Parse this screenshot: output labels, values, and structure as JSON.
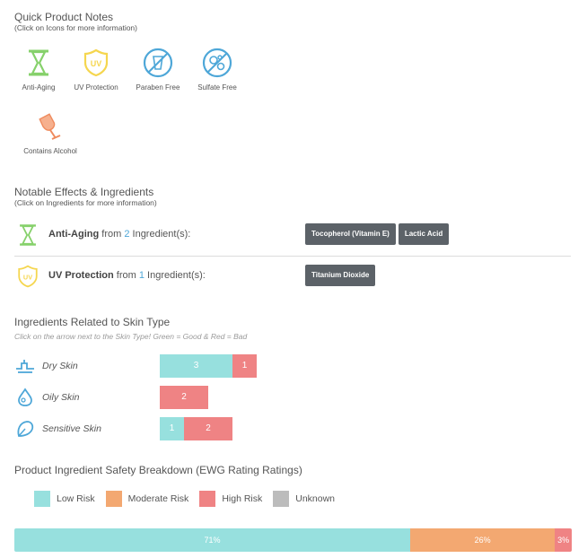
{
  "quick_notes": {
    "title": "Quick Product Notes",
    "subtitle": "(Click on Icons for more information)",
    "items": [
      {
        "label": "Anti-Aging",
        "icon": "hourglass-icon"
      },
      {
        "label": "UV Protection",
        "icon": "uv-shield-icon"
      },
      {
        "label": "Paraben Free",
        "icon": "paraben-free-icon"
      },
      {
        "label": "Sulfate Free",
        "icon": "sulfate-free-icon"
      },
      {
        "label": "Contains Alcohol",
        "icon": "wine-glass-icon"
      }
    ]
  },
  "notable": {
    "title": "Notable Effects & Ingredients",
    "subtitle": "(Click on Ingredients for more information)",
    "rows": [
      {
        "name": "Anti-Aging",
        "from": "from",
        "count": "2",
        "suffix": "Ingredient(s):",
        "tags": [
          "Tocopherol (Vitamin E)",
          "Lactic Acid"
        ]
      },
      {
        "name": "UV Protection",
        "from": "from",
        "count": "1",
        "suffix": "Ingredient(s):",
        "tags": [
          "Titanium Dioxide"
        ]
      }
    ]
  },
  "skin_type": {
    "title": "Ingredients Related to Skin Type",
    "subtitle": "Click on the arrow next to the Skin Type! Green = Good & Red = Bad",
    "rows": [
      {
        "label": "Dry Skin",
        "good": 3,
        "bad": 1,
        "icon": "dry-skin-icon"
      },
      {
        "label": "Oily Skin",
        "good": 0,
        "bad": 2,
        "icon": "oily-skin-icon"
      },
      {
        "label": "Sensitive Skin",
        "good": 1,
        "bad": 2,
        "icon": "sensitive-skin-icon"
      }
    ],
    "colors": {
      "good": "#97e0de",
      "bad": "#ef8384"
    }
  },
  "safety": {
    "title": "Product Ingredient Safety Breakdown (EWG Rating Ratings)",
    "legend": [
      {
        "label": "Low Risk",
        "color": "#97e0de"
      },
      {
        "label": "Moderate Risk",
        "color": "#f3a871"
      },
      {
        "label": "High Risk",
        "color": "#ef8384"
      },
      {
        "label": "Unknown",
        "color": "#bcbcbc"
      }
    ],
    "segments": [
      {
        "label": "71%",
        "percent": 71,
        "color": "#97e0de"
      },
      {
        "label": "26%",
        "percent": 26,
        "color": "#f3a871"
      },
      {
        "label": "3%",
        "percent": 3,
        "color": "#ef8384"
      }
    ]
  }
}
